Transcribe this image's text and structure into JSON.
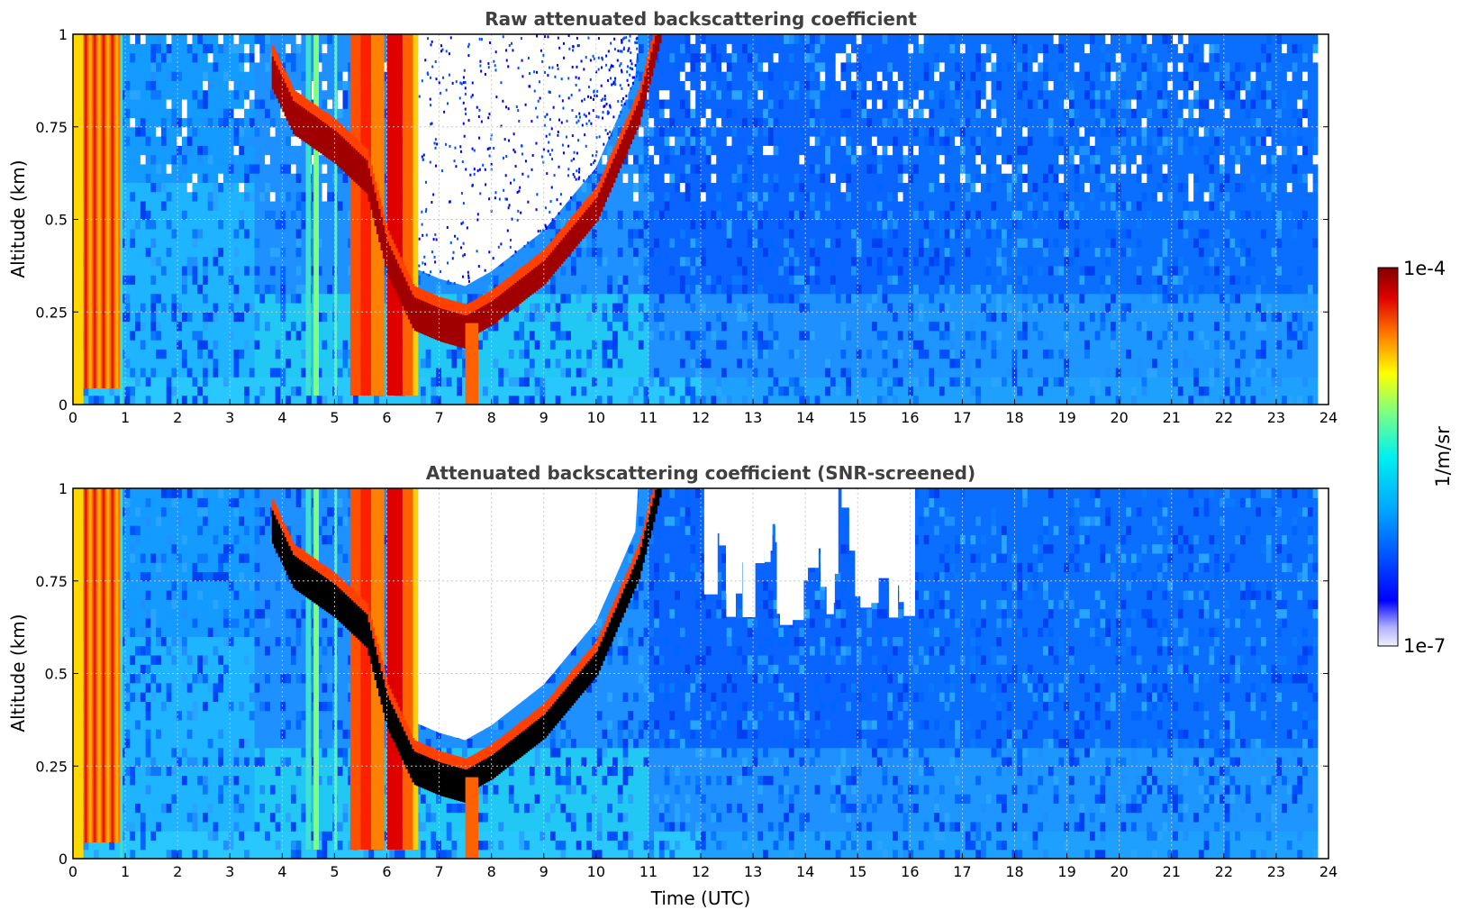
{
  "chart_data": [
    {
      "type": "heatmap",
      "title": "Raw attenuated backscattering coefficient",
      "xlabel": "",
      "ylabel": "Altitude (km)",
      "xlim": [
        0,
        24
      ],
      "ylim": [
        0,
        1
      ],
      "xticks": [
        "0",
        "1",
        "2",
        "3",
        "4",
        "5",
        "6",
        "7",
        "8",
        "9",
        "10",
        "11",
        "12",
        "13",
        "14",
        "15",
        "16",
        "17",
        "18",
        "19",
        "20",
        "21",
        "22",
        "23",
        "24"
      ],
      "yticks": [
        "0",
        "0.25",
        "0.5",
        "0.75",
        "1"
      ],
      "grid": true,
      "data_end_hour": 23.8,
      "features": [
        {
          "name": "fog / low cloud",
          "x": [
            0.0,
            0.95
          ],
          "y": [
            0.0,
            1.0
          ]
        },
        {
          "name": "precipitation streaks",
          "x": [
            4.4,
            6.6
          ],
          "y": [
            0.0,
            1.0
          ]
        },
        {
          "name": "cloud base layer",
          "x": [
            3.8,
            11.2
          ],
          "cloud_base_km": [
            [
              3.8,
              0.9
            ],
            [
              4.2,
              0.78
            ],
            [
              5.0,
              0.7
            ],
            [
              5.6,
              0.62
            ],
            [
              6.0,
              0.4
            ],
            [
              6.5,
              0.25
            ],
            [
              7.0,
              0.22
            ],
            [
              7.5,
              0.2
            ],
            [
              8.0,
              0.24
            ],
            [
              9.0,
              0.35
            ],
            [
              10.0,
              0.52
            ],
            [
              10.8,
              0.78
            ],
            [
              11.2,
              1.0
            ]
          ]
        }
      ]
    },
    {
      "type": "heatmap",
      "title": "Attenuated backscattering coefficient (SNR-screened)",
      "xlabel": "Time (UTC)",
      "ylabel": "Altitude (km)",
      "xlim": [
        0,
        24
      ],
      "ylim": [
        0,
        1
      ],
      "xticks": [
        "0",
        "1",
        "2",
        "3",
        "4",
        "5",
        "6",
        "7",
        "8",
        "9",
        "10",
        "11",
        "12",
        "13",
        "14",
        "15",
        "16",
        "17",
        "18",
        "19",
        "20",
        "21",
        "22",
        "23",
        "24"
      ],
      "yticks": [
        "0",
        "0.25",
        "0.5",
        "0.75",
        "1"
      ],
      "grid": true,
      "data_end_hour": 23.8,
      "screened_regions": [
        {
          "name": "above cloud",
          "x": [
            6.6,
            10.8
          ],
          "y": [
            0.35,
            1.0
          ]
        },
        {
          "name": "noisy upper",
          "x": [
            12.0,
            16.0
          ],
          "y": [
            0.62,
            1.0
          ]
        }
      ]
    }
  ],
  "colorbar": {
    "min_label": "1e-7",
    "max_label": "1e-4",
    "unit_label": "1/m/sr",
    "scale": "log",
    "range": [
      1e-07,
      0.0001
    ]
  }
}
